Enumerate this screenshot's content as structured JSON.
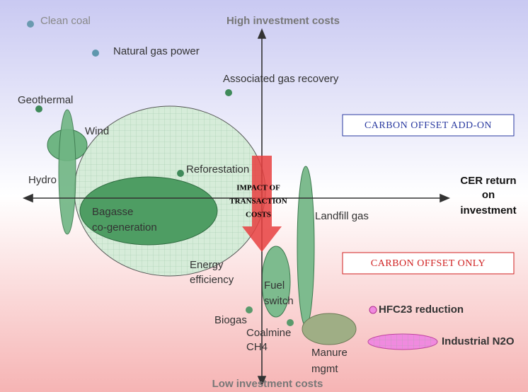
{
  "axes": {
    "top": "High investment costs",
    "bottom": "Low investment costs",
    "right": [
      "CER return",
      "on",
      "investment"
    ]
  },
  "boxes": {
    "add_on": "CARBON OFFSET ADD-ON",
    "only": "CARBON OFFSET ONLY"
  },
  "impact": [
    "IMPACT OF",
    "TRANSACTION",
    "COSTS"
  ],
  "labels": {
    "clean_coal": "Clean coal",
    "natural_gas": "Natural gas power",
    "associated_gas": "Associated gas recovery",
    "geothermal": "Geothermal",
    "wind": "Wind",
    "hydro": "Hydro",
    "reforestation": "Reforestation",
    "bagasse": [
      "Bagasse",
      "co-generation"
    ],
    "landfill": "Landfill gas",
    "energy_efficiency": [
      "Energy",
      "efficiency"
    ],
    "fuel_switch": [
      "Fuel",
      "switch"
    ],
    "hfc23": "HFC23 reduction",
    "biogas": "Biogas",
    "coalmine": [
      "Coalmine",
      "CH4"
    ],
    "manure": [
      "Manure",
      "mgmt"
    ],
    "n2o": "Industrial N2O"
  }
}
